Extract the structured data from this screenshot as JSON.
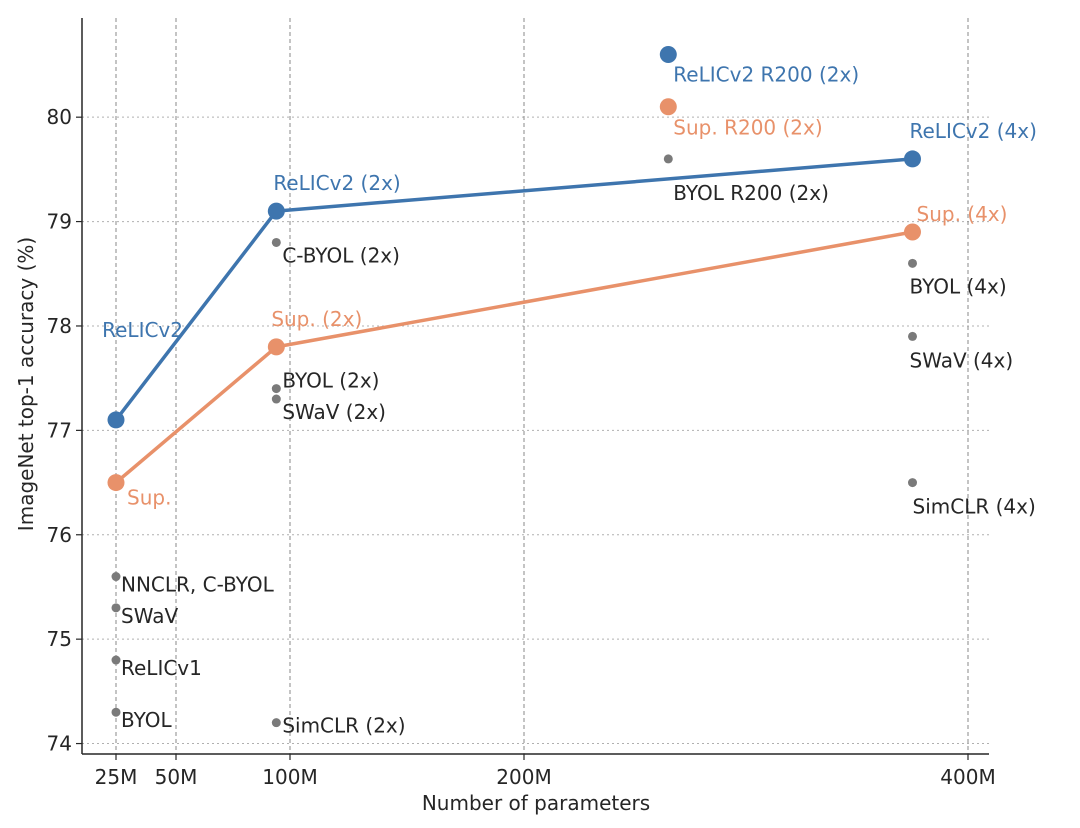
{
  "chart_data": {
    "type": "scatter",
    "xlabel": "Number of parameters",
    "ylabel": "ImageNet top-1 accuracy (%)",
    "x_ticks": [
      {
        "value": 25,
        "label": "25M"
      },
      {
        "value": 50,
        "label": "50M"
      },
      {
        "value": 100,
        "label": "100M"
      },
      {
        "value": 200,
        "label": "200M"
      },
      {
        "value": 400,
        "label": "400M"
      }
    ],
    "y_ticks": [
      {
        "value": 74,
        "label": "74"
      },
      {
        "value": 75,
        "label": "75"
      },
      {
        "value": 76,
        "label": "76"
      },
      {
        "value": 77,
        "label": "77"
      },
      {
        "value": 78,
        "label": "78"
      },
      {
        "value": 79,
        "label": "79"
      },
      {
        "value": 80,
        "label": "80"
      }
    ],
    "xlim": [
      20,
      420
    ],
    "ylim": [
      73.9,
      80.95
    ],
    "grid": true,
    "colors": {
      "relic": "#3e75ae",
      "sup": "#e8916a",
      "other": "#7a7a7a",
      "text": "#262626"
    },
    "lines": [
      {
        "id": "relic",
        "x": [
          25,
          94,
          375
        ],
        "y": [
          77.1,
          79.1,
          79.6
        ]
      },
      {
        "id": "sup",
        "x": [
          25,
          94,
          375
        ],
        "y": [
          76.5,
          77.8,
          78.9
        ]
      }
    ],
    "points": [
      {
        "x": 25,
        "y": 77.1,
        "label": "ReLICv2",
        "group": "relic",
        "size": "big",
        "anchor": "end",
        "dx": 67,
        "dy": -83
      },
      {
        "x": 94,
        "y": 79.1,
        "label": "ReLICv2 (2x)",
        "group": "relic",
        "size": "big",
        "anchor": "start",
        "dx": -3,
        "dy": -21
      },
      {
        "x": 375,
        "y": 79.6,
        "label": "ReLICv2 (4x)",
        "group": "relic",
        "size": "big",
        "anchor": "start",
        "dx": -3,
        "dy": -21
      },
      {
        "x": 265,
        "y": 80.6,
        "label": "ReLICv2 R200 (2x)",
        "group": "relic",
        "size": "big",
        "anchor": "start",
        "dx": 5,
        "dy": 27
      },
      {
        "x": 25,
        "y": 76.5,
        "label": "Sup.",
        "group": "sup",
        "size": "big",
        "anchor": "start",
        "dx": 11,
        "dy": 22
      },
      {
        "x": 94,
        "y": 77.8,
        "label": "Sup. (2x)",
        "group": "sup",
        "size": "big",
        "anchor": "start",
        "dx": -5,
        "dy": -21
      },
      {
        "x": 375,
        "y": 78.9,
        "label": "Sup. (4x)",
        "group": "sup",
        "size": "big",
        "anchor": "start",
        "dx": 4,
        "dy": -11
      },
      {
        "x": 265,
        "y": 80.1,
        "label": "Sup. R200 (2x)",
        "group": "sup",
        "size": "big",
        "anchor": "start",
        "dx": 5,
        "dy": 28
      },
      {
        "x": 25,
        "y": 75.6,
        "label": "NNCLR,  C-BYOL",
        "group": "other",
        "size": "small",
        "anchor": "start",
        "dx": 5,
        "dy": 15
      },
      {
        "x": 25,
        "y": 75.3,
        "label": "SWaV",
        "group": "other",
        "size": "small",
        "anchor": "start",
        "dx": 5,
        "dy": 15
      },
      {
        "x": 25,
        "y": 74.8,
        "label": "ReLICv1",
        "group": "other",
        "size": "small",
        "anchor": "start",
        "dx": 5,
        "dy": 15
      },
      {
        "x": 25,
        "y": 74.3,
        "label": "BYOL",
        "group": "other",
        "size": "small",
        "anchor": "start",
        "dx": 5,
        "dy": 15
      },
      {
        "x": 94,
        "y": 78.8,
        "label": "C-BYOL (2x)",
        "group": "other",
        "size": "small",
        "anchor": "start",
        "dx": 6,
        "dy": 20
      },
      {
        "x": 94,
        "y": 77.4,
        "label": "BYOL (2x)",
        "group": "other",
        "size": "small",
        "anchor": "start",
        "dx": 6,
        "dy": -1
      },
      {
        "x": 94,
        "y": 77.3,
        "label": "SWaV (2x)",
        "group": "other",
        "size": "small",
        "anchor": "start",
        "dx": 6,
        "dy": 20
      },
      {
        "x": 94,
        "y": 74.2,
        "label": "SimCLR (2x)",
        "group": "other",
        "size": "small",
        "anchor": "start",
        "dx": 6,
        "dy": 10
      },
      {
        "x": 265,
        "y": 79.6,
        "label": "BYOL R200 (2x)",
        "group": "other",
        "size": "small",
        "anchor": "start",
        "dx": 5,
        "dy": 41
      },
      {
        "x": 375,
        "y": 78.6,
        "label": "BYOL (4x)",
        "group": "other",
        "size": "small",
        "anchor": "start",
        "dx": -3,
        "dy": 30
      },
      {
        "x": 375,
        "y": 77.9,
        "label": "SWaV (4x)",
        "group": "other",
        "size": "small",
        "anchor": "start",
        "dx": -3,
        "dy": 31
      },
      {
        "x": 375,
        "y": 76.5,
        "label": "SimCLR (4x)",
        "group": "other",
        "size": "small",
        "anchor": "start",
        "dx": 0,
        "dy": 31
      }
    ]
  }
}
